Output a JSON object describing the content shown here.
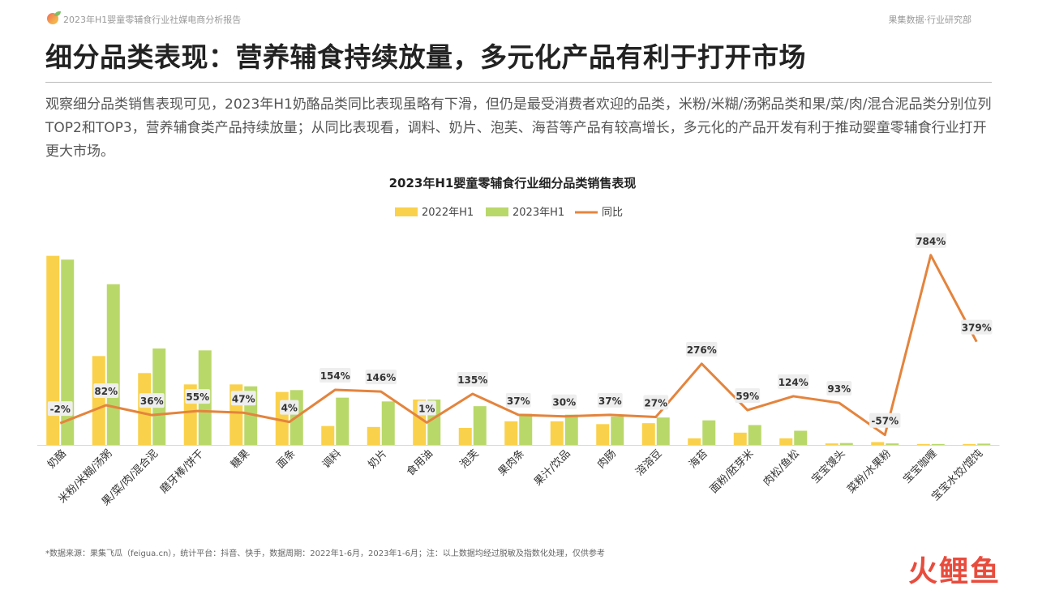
{
  "header": {
    "report_title": "2023年H1婴童零辅食行业社媒电商分析报告",
    "brand": "果集数据·行业研究部"
  },
  "page": {
    "title": "细分品类表现：营养辅食持续放量，多元化产品有利于打开市场",
    "body": "观察细分品类销售表现可见，2023年H1奶酪品类同比表现虽略有下滑，但仍是最受消费者欢迎的品类，米粉/米糊/汤粥品类和果/菜/肉/混合泥品类分别位列TOP2和TOP3，营养辅食类产品持续放量；从同比表现看，调料、奶片、泡芙、海苔等产品有较高增长，多元化的产品开发有利于推动婴童零辅食行业打开更大市场。",
    "footnote": "*数据来源：果集飞瓜（feigua.cn），统计平台：抖音、快手，数据周期：2022年1-6月，2023年1-6月；注：以上数据均经过脱敏及指数化处理，仅供参考",
    "watermark": "火鲤鱼"
  },
  "colors": {
    "bar_2022": "#FAD14A",
    "bar_2023": "#B9D86A",
    "line": "#E4843D",
    "label_bg": "#EEEEEE"
  },
  "chart_data": {
    "type": "bar",
    "title": "2023年H1婴童零辅食行业细分品类销售表现",
    "legend_position": "top",
    "categories": [
      "奶酪",
      "米粉/米糊/汤粥",
      "果/菜/肉/混合泥",
      "磨牙棒/饼干",
      "糖果",
      "面条",
      "调料",
      "奶片",
      "食用油",
      "泡芙",
      "果肉条",
      "果汁/饮品",
      "肉肠",
      "溶溶豆",
      "海苔",
      "面粉/胚芽米",
      "肉松/鱼松",
      "宝宝馒头",
      "菜粉/水果粉",
      "宝宝咖喱",
      "宝宝水饺/馄饨"
    ],
    "series": [
      {
        "name": "2022年H1",
        "kind": "bar",
        "values": [
          100,
          47,
          38,
          32,
          32,
          28,
          10,
          9.5,
          24,
          9,
          12.5,
          12.5,
          11,
          11.5,
          3.5,
          6.5,
          3.5,
          0.8,
          1.5,
          0.5,
          0.5
        ]
      },
      {
        "name": "2023年H1",
        "kind": "bar",
        "values": [
          98,
          85,
          51,
          50,
          31,
          29,
          25,
          23,
          24,
          20.5,
          16.5,
          16,
          15,
          14.5,
          13,
          10.5,
          7.5,
          1,
          0.8,
          0.5,
          0.7
        ]
      },
      {
        "name": "同比",
        "kind": "line",
        "values": [
          -2,
          82,
          36,
          55,
          47,
          4,
          154,
          146,
          1,
          135,
          37,
          30,
          37,
          27,
          276,
          59,
          124,
          93,
          -57,
          784,
          379
        ],
        "labels": [
          "-2%",
          "82%",
          "36%",
          "55%",
          "47%",
          "4%",
          "154%",
          "146%",
          "1%",
          "135%",
          "37%",
          "30%",
          "37%",
          "27%",
          "276%",
          "59%",
          "124%",
          "93%",
          "-57%",
          "784%",
          "379%"
        ]
      }
    ],
    "bar_ylim": [
      0,
      102
    ],
    "line_ylim": [
      -115,
      840
    ],
    "grid": false
  }
}
